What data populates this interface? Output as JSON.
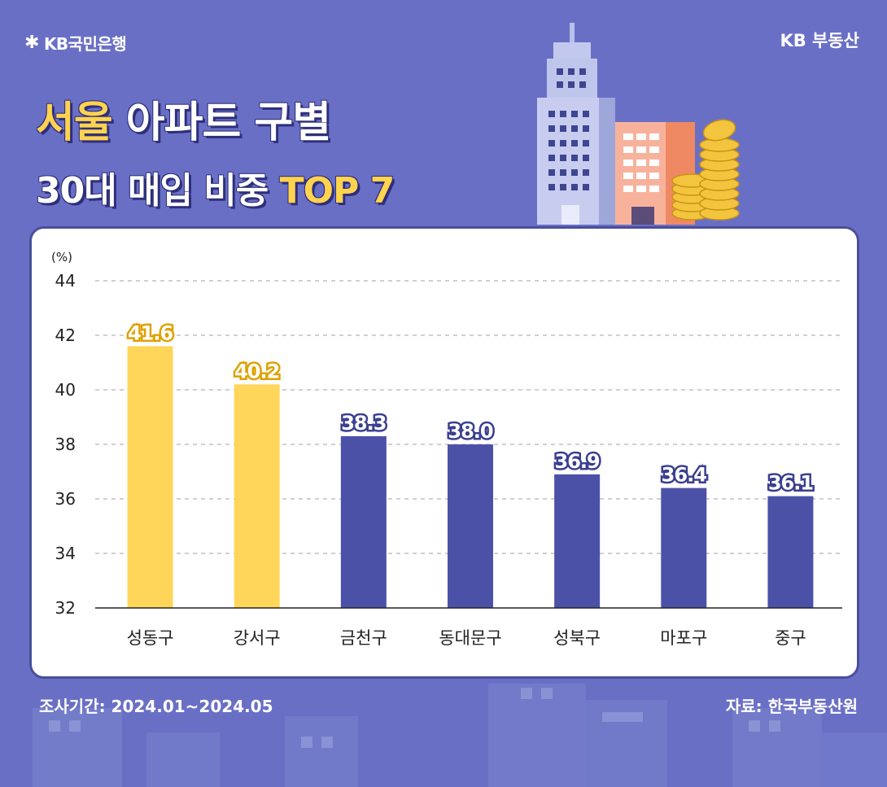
{
  "header": {
    "bank_logo_text": "KB국민은행",
    "service_name": "KB 부동산",
    "title_highlight": "서울",
    "title_rest": " 아파트 구별",
    "subtitle_main": "30대 매입 비중 ",
    "subtitle_highlight": "TOP 7"
  },
  "footer": {
    "period": "조사기간: 2024.01~2024.05",
    "source": "자료: 한국부동산원"
  },
  "colors": {
    "background": "#6a6fc6",
    "highlight_bar": "#ffd659",
    "normal_bar": "#4c51a8",
    "title_highlight": "#ffd34e"
  },
  "icons": [
    "kb-star-icon",
    "building-illustration",
    "coin-stack-illustration",
    "city-skyline-illustration"
  ],
  "chart_data": {
    "type": "bar",
    "unit_label": "(%)",
    "categories": [
      "성동구",
      "강서구",
      "금천구",
      "동대문구",
      "성북구",
      "마포구",
      "중구"
    ],
    "values": [
      41.6,
      40.2,
      38.3,
      38.0,
      36.9,
      36.4,
      36.1
    ],
    "value_labels": [
      "41.6",
      "40.2",
      "38.3",
      "38.0",
      "36.9",
      "36.4",
      "36.1"
    ],
    "highlighted": [
      true,
      true,
      false,
      false,
      false,
      false,
      false
    ],
    "ylim": [
      32,
      44
    ],
    "yticks": [
      "32",
      "34",
      "36",
      "38",
      "40",
      "42",
      "44"
    ],
    "grid": true,
    "legend": "none"
  }
}
